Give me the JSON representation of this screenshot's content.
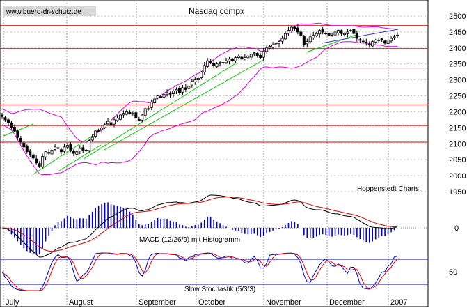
{
  "chart_data": {
    "type": "candlestick",
    "title": "Nasdaq compx",
    "watermark": "www.buero-dr-schutz.de",
    "credit": "Hoppenstedt Charts",
    "grid": true,
    "x_months": [
      "July",
      "August",
      "September",
      "October",
      "November",
      "December",
      "2007"
    ],
    "y_ticks": [
      "2500",
      "2450",
      "2400",
      "2350",
      "2300",
      "2250",
      "2200",
      "2150",
      "2100",
      "2050",
      "2000",
      "1950"
    ],
    "ylim": [
      1930,
      2510
    ],
    "horizontal_lines": [
      2470,
      2398,
      2337,
      2222,
      2157,
      2105,
      2058
    ],
    "horizontal_line_color": "#d80000",
    "bollinger_color": "#dd00dd",
    "trendline_color": "#00cc00",
    "close_approx": [
      2185,
      2175,
      2165,
      2150,
      2140,
      2120,
      2105,
      2090,
      2075,
      2065,
      2055,
      2040,
      2030,
      2060,
      2075,
      2070,
      2080,
      2090,
      2085,
      2075,
      2090,
      2095,
      2080,
      2070,
      2075,
      2085,
      2080,
      2080,
      2110,
      2120,
      2140,
      2140,
      2150,
      2160,
      2170,
      2160,
      2175,
      2180,
      2190,
      2195,
      2200,
      2195,
      2195,
      2180,
      2175,
      2190,
      2210,
      2210,
      2230,
      2240,
      2250,
      2245,
      2255,
      2260,
      2255,
      2265,
      2270,
      2260,
      2275,
      2270,
      2280,
      2295,
      2300,
      2305,
      2325,
      2345,
      2360,
      2355,
      2345,
      2350,
      2355,
      2355,
      2360,
      2365,
      2360,
      2370,
      2375,
      2365,
      2370,
      2375,
      2380,
      2385,
      2375,
      2370,
      2390,
      2400,
      2405,
      2410,
      2415,
      2420,
      2430,
      2445,
      2455,
      2465,
      2460,
      2450,
      2440,
      2410,
      2420,
      2435,
      2440,
      2445,
      2455,
      2450,
      2445,
      2440,
      2440,
      2450,
      2455,
      2445,
      2445,
      2450,
      2455,
      2445,
      2430,
      2425,
      2420,
      2415,
      2410,
      2420,
      2425,
      2425,
      2425,
      2415,
      2425,
      2430,
      2435,
      2440
    ],
    "panels": [
      {
        "name": "MACD (12/26/9) mit Histogramm",
        "y_ticks": [
          "0"
        ],
        "series": [
          {
            "color": "#000000"
          },
          {
            "color": "#dd0000"
          }
        ],
        "histogram_color": "#0000cc"
      },
      {
        "name": "Slow Stochastik (5/3/3)",
        "y_ticks": [
          "50"
        ],
        "reference_lines": [
          80,
          20
        ],
        "reference_line_color": "#0000cc",
        "series": [
          {
            "color": "#0000cc"
          },
          {
            "color": "#dd0000"
          }
        ]
      }
    ]
  }
}
